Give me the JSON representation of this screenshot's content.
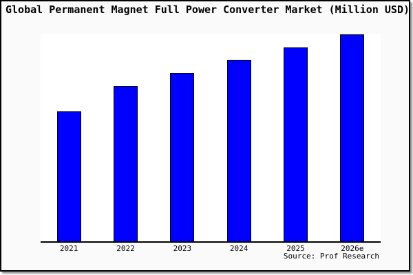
{
  "chart_data": {
    "type": "bar",
    "title": "Global Permanent Magnet Full Power Converter Market (Million USD)",
    "categories": [
      "2021",
      "2022",
      "2023",
      "2024",
      "2025",
      "2026e"
    ],
    "values": [
      190,
      227,
      246,
      265,
      283,
      302
    ],
    "values_unit": "relative height (chart displays no y-axis scale or data labels)",
    "ylim": [
      0,
      303
    ],
    "xlabel": "",
    "ylabel": "",
    "grid": false,
    "legend": false,
    "bar_color": "#0000ff",
    "bar_border_color": "#000000"
  },
  "source_note": "Source: Prof Research",
  "colors": {
    "page_background": "#fafafa",
    "plot_background": "#ffffff",
    "axis": "#000000",
    "title_text": "#000000",
    "frame_border": "#000000",
    "shadow": "#999999"
  }
}
